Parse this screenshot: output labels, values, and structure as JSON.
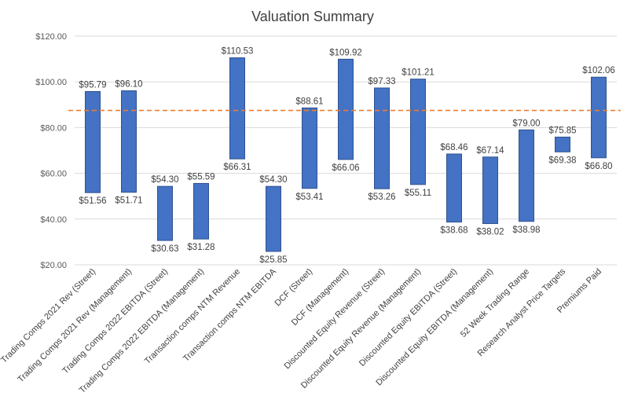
{
  "chart_data": {
    "type": "bar",
    "subtype": "floating-range",
    "title": "Valuation Summary",
    "xlabel": "",
    "ylabel": "",
    "ylim": [
      20,
      120
    ],
    "yticks": [
      20,
      40,
      60,
      80,
      100,
      120
    ],
    "ytick_labels": [
      "$20.00",
      "$40.00",
      "$60.00",
      "$80.00",
      "$100.00",
      "$120.00"
    ],
    "grid": true,
    "legend": "none",
    "categories": [
      "Trading Comps 2021 Rev (Street)",
      "Trading Comps 2021 Rev (Management)",
      "Trading Comps 2022 EBITDA (Street)",
      "Trading Comps 2022 EBITDA (Management)",
      "Transaction comps NTM Revenue",
      "Transaction comps NTM EBITDA",
      "DCF (Street)",
      "DCF (Management)",
      "Discounted Equity Revenue (Street)",
      "Discounted Equity Revenue (Management)",
      "Discounted Equity EBITDA (Street)",
      "Discounted Equity EBITDA (Management)",
      "52 Week Trading Range",
      "Research Analyst Price Targets",
      "Premiums Paid"
    ],
    "series": [
      {
        "name": "Low",
        "values": [
          51.56,
          51.71,
          30.63,
          31.28,
          66.31,
          25.85,
          53.41,
          66.06,
          53.26,
          55.11,
          38.68,
          38.02,
          38.98,
          69.38,
          66.8
        ],
        "labels": [
          "$51.56",
          "$51.71",
          "$30.63",
          "$31.28",
          "$66.31",
          "$25.85",
          "$53.41",
          "$66.06",
          "$53.26",
          "$55.11",
          "$38.68",
          "$38.02",
          "$38.98",
          "$69.38",
          "$66.80"
        ]
      },
      {
        "name": "High",
        "values": [
          95.79,
          96.1,
          54.3,
          55.59,
          110.53,
          54.3,
          88.61,
          109.92,
          97.33,
          101.21,
          68.46,
          67.14,
          79.0,
          75.85,
          102.06
        ],
        "labels": [
          "$95.79",
          "$96.10",
          "$54.30",
          "$55.59",
          "$110.53",
          "$54.30",
          "$88.61",
          "$109.92",
          "$97.33",
          "$101.21",
          "$68.46",
          "$67.14",
          "$79.00",
          "$75.85",
          "$102.06"
        ]
      }
    ],
    "reference_line": {
      "value": 87.5,
      "style": "dashed"
    },
    "colors": {
      "bar_fill": "#4472c4",
      "bar_edge": "#2f528f",
      "reference_line": "#ed7d31",
      "grid": "#d9d9d9"
    }
  }
}
